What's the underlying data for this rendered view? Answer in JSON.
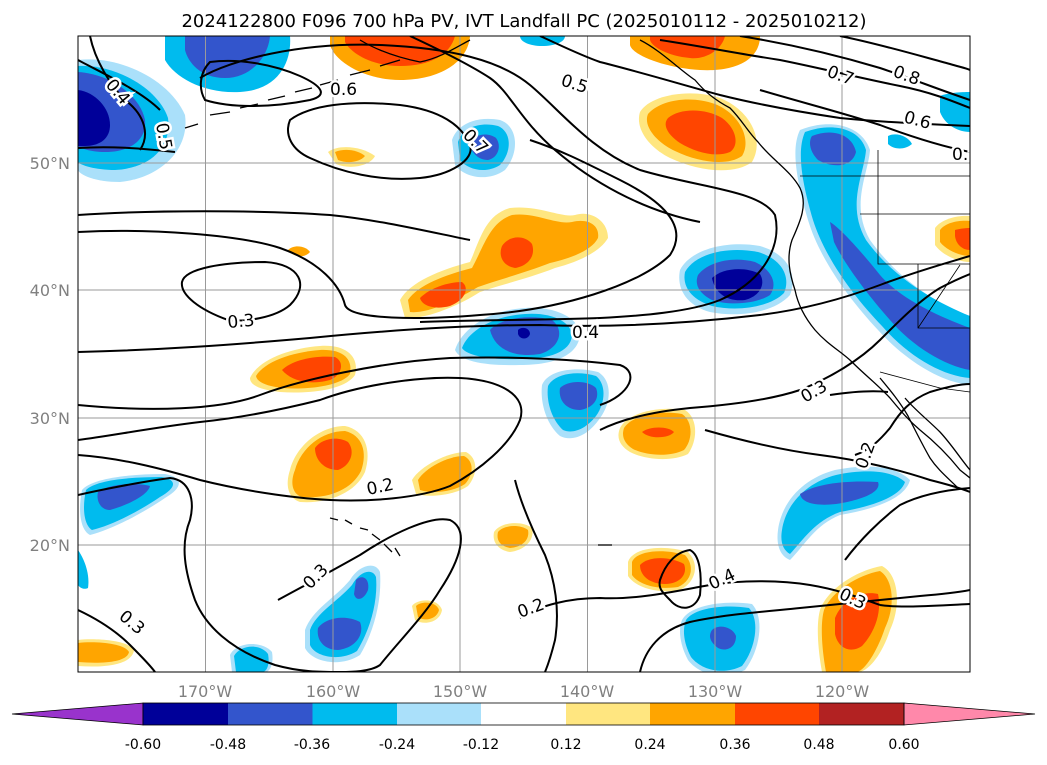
{
  "title": "2024122800 F096 700 hPa PV, IVT Landfall PC (2025010112 - 2025010212)",
  "lon_ticks": [
    "170°W",
    "160°W",
    "150°W",
    "140°W",
    "130°W",
    "120°W"
  ],
  "lat_ticks": [
    "50°N",
    "40°N",
    "30°N",
    "20°N"
  ],
  "colorbar": {
    "colors": [
      "#9933cc",
      "#000099",
      "#3355cc",
      "#00bbee",
      "#aae0fa",
      "#ffffff",
      "#ffe680",
      "#ffa500",
      "#ff4500",
      "#b22222",
      "#ff88aa"
    ],
    "labels": [
      "-0.60",
      "-0.48",
      "-0.36",
      "-0.24",
      "-0.12",
      "0.12",
      "0.24",
      "0.36",
      "0.48",
      "0.60"
    ]
  },
  "contour_labels": [
    "0.4",
    "0.6",
    "0.5",
    "0.7",
    "0.8",
    "0.6",
    "0.5",
    "0.7",
    "0.3",
    "0.4",
    "0.3",
    "0.2",
    "0.2",
    "0.3",
    "0.3",
    "0.2",
    "0.4",
    "0.3",
    "0.3"
  ]
}
